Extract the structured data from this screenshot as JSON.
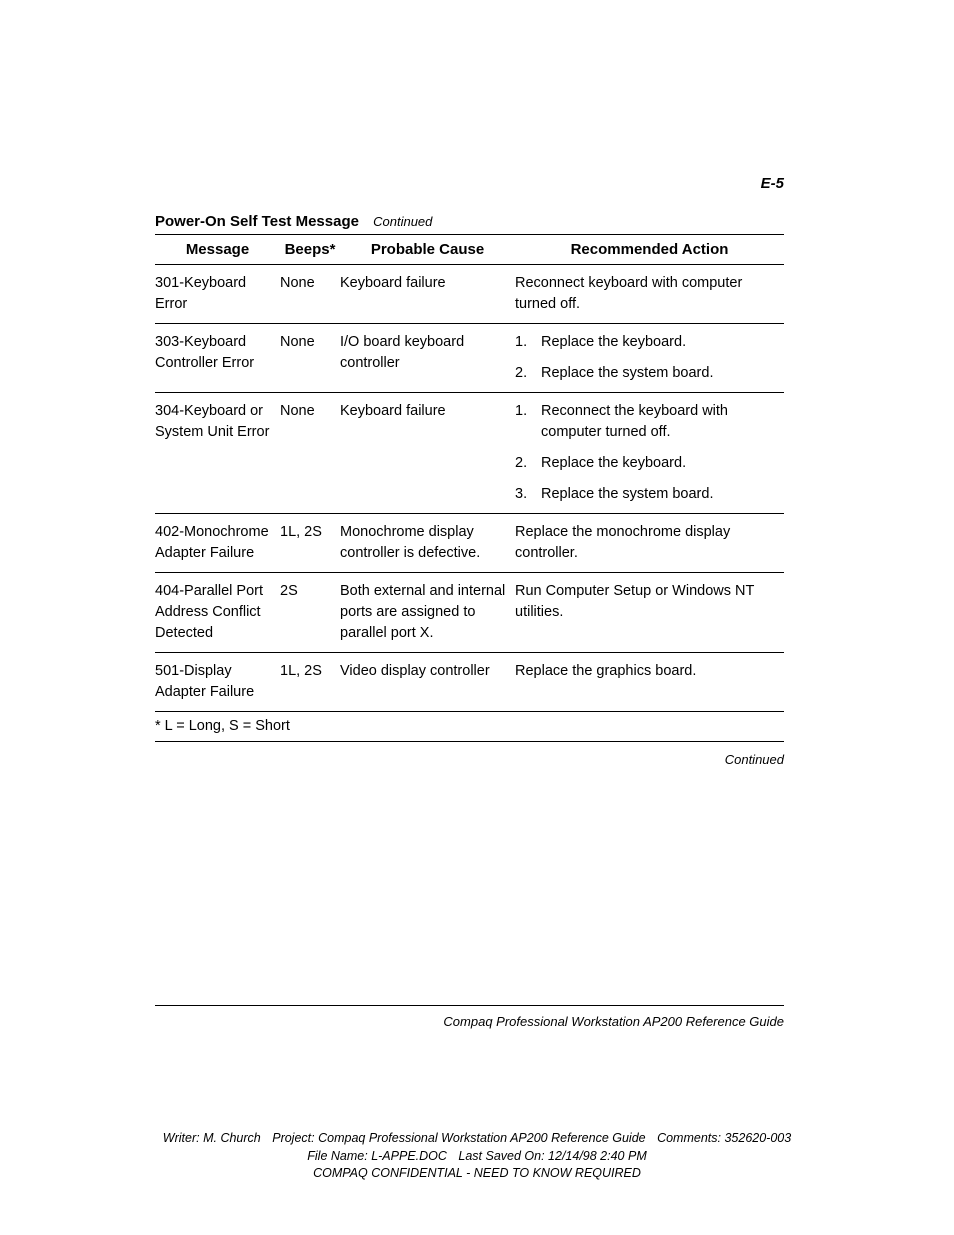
{
  "page_number": "E-5",
  "table_title": "Power-On Self Test Message",
  "table_title_suffix": "Continued",
  "columns": [
    "Message",
    "Beeps*",
    "Probable Cause",
    "Recommended Action"
  ],
  "rows": [
    {
      "message": "301-Keyboard Error",
      "beeps": "None",
      "cause": "Keyboard failure",
      "action_type": "text",
      "action_text": "Reconnect keyboard with computer turned off."
    },
    {
      "message": "303-Keyboard Controller Error",
      "beeps": "None",
      "cause": "I/O board keyboard controller",
      "action_type": "list",
      "action_list": [
        "Replace the keyboard.",
        "Replace the system board."
      ]
    },
    {
      "message": "304-Keyboard or System Unit Error",
      "beeps": "None",
      "cause": "Keyboard failure",
      "action_type": "list",
      "action_list": [
        "Reconnect the keyboard with computer turned off.",
        "Replace the keyboard.",
        "Replace the system board."
      ]
    },
    {
      "message": "402-Monochrome Adapter Failure",
      "beeps": "1L, 2S",
      "cause": "Monochrome display controller is defective.",
      "action_type": "text",
      "action_text": "Replace the monochrome display controller."
    },
    {
      "message": "404-Parallel Port Address Conflict Detected",
      "beeps": "2S",
      "cause": "Both external and internal ports are assigned to parallel port X.",
      "action_type": "text",
      "action_text": "Run Computer Setup or Windows NT utilities."
    },
    {
      "message": "501-Display Adapter Failure",
      "beeps": "1L, 2S",
      "cause": "Video display controller",
      "action_type": "text",
      "action_text": "Replace the graphics board."
    }
  ],
  "footnote": "* L = Long, S = Short",
  "continued_bottom": "Continued",
  "footer_title": "Compaq Professional Workstation AP200 Reference Guide",
  "meta_footer": {
    "writer_label": "Writer:",
    "writer": "M. Church",
    "project_label": "Project:",
    "project": "Compaq Professional Workstation AP200 Reference Guide",
    "comments_label": "Comments:",
    "comments": "352620-003",
    "file_label": "File Name:",
    "file": "L-APPE.DOC",
    "saved_label": "Last Saved On:",
    "saved": "12/14/98 2:40 PM",
    "confidential": "COMPAQ CONFIDENTIAL - NEED TO KNOW REQUIRED"
  }
}
